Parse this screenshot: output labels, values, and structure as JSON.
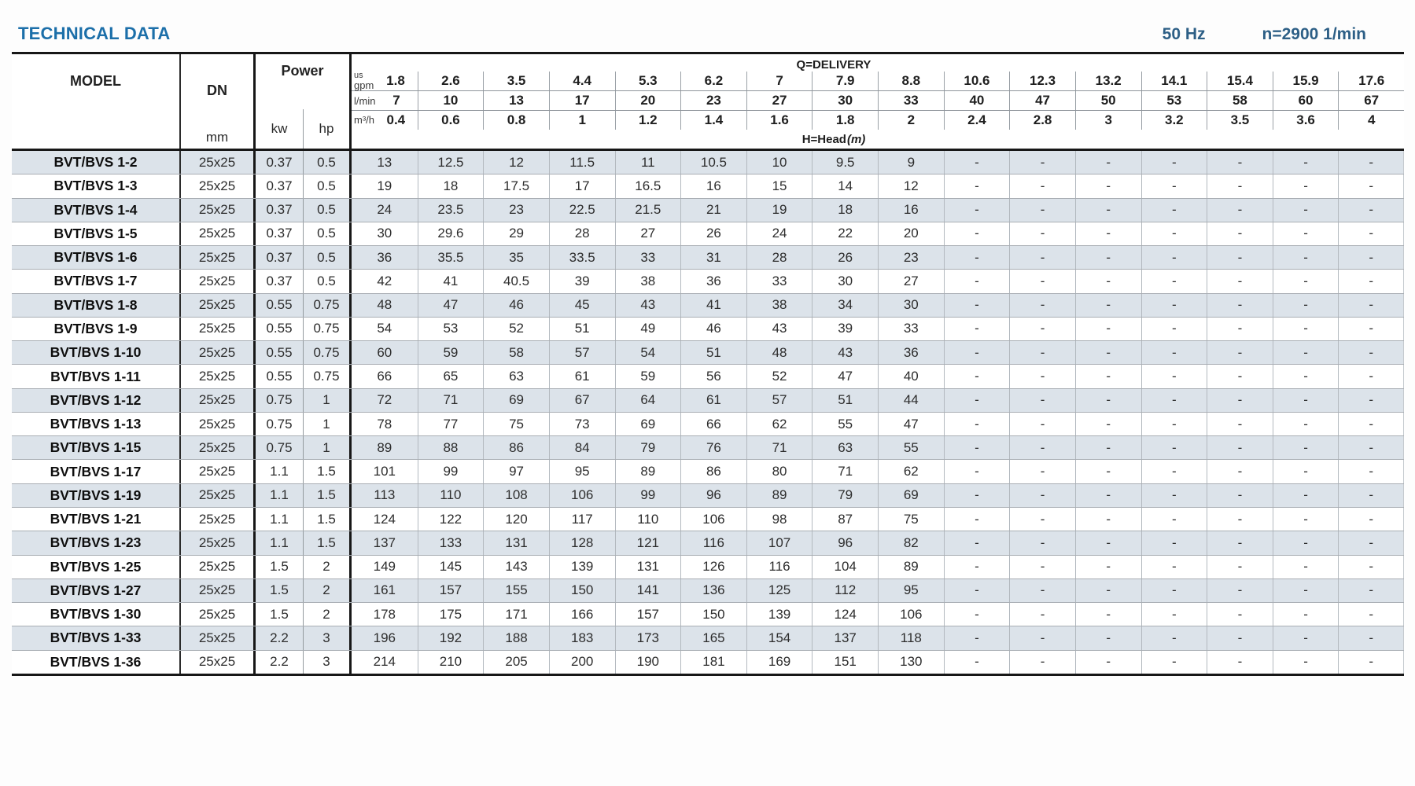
{
  "page": {
    "title": "TECHNICAL DATA",
    "frequency": "50 Hz",
    "speed": "n=2900 1/min"
  },
  "colors": {
    "title_blue": "#1c6fa9",
    "frequency_blue": "#2d5f86",
    "row_band": "#dce3ea",
    "heavy_border": "#171717"
  },
  "table": {
    "headers": {
      "model": "MODEL",
      "dn": "DN",
      "dn_unit": "mm",
      "power": "Power",
      "power_unit_kw": "kw",
      "power_unit_hp": "hp"
    },
    "delivery": {
      "title": "Q=DELIVERY",
      "head_label": "H=Head",
      "head_unit": "(m)",
      "unit_rows": [
        {
          "key": "usgpm",
          "label_small": "us",
          "label": "gpm",
          "values": [
            "1.8",
            "2.6",
            "3.5",
            "4.4",
            "5.3",
            "6.2",
            "7",
            "7.9",
            "8.8",
            "10.6",
            "12.3",
            "13.2",
            "14.1",
            "15.4",
            "15.9",
            "17.6"
          ]
        },
        {
          "key": "lmin",
          "label": "l/min",
          "values": [
            "7",
            "10",
            "13",
            "17",
            "20",
            "23",
            "27",
            "30",
            "33",
            "40",
            "47",
            "50",
            "53",
            "58",
            "60",
            "67"
          ]
        },
        {
          "key": "m3h",
          "label": "m³/h",
          "values": [
            "0.4",
            "0.6",
            "0.8",
            "1",
            "1.2",
            "1.4",
            "1.6",
            "1.8",
            "2",
            "2.4",
            "2.8",
            "3",
            "3.2",
            "3.5",
            "3.6",
            "4"
          ]
        }
      ]
    },
    "rows": [
      {
        "model": "BVT/BVS 1-2",
        "dn": "25x25",
        "kw": "0.37",
        "hp": "0.5",
        "head": [
          "13",
          "12.5",
          "12",
          "11.5",
          "11",
          "10.5",
          "10",
          "9.5",
          "9",
          "-",
          "-",
          "-",
          "-",
          "-",
          "-",
          "-"
        ]
      },
      {
        "model": "BVT/BVS 1-3",
        "dn": "25x25",
        "kw": "0.37",
        "hp": "0.5",
        "head": [
          "19",
          "18",
          "17.5",
          "17",
          "16.5",
          "16",
          "15",
          "14",
          "12",
          "-",
          "-",
          "-",
          "-",
          "-",
          "-",
          "-"
        ]
      },
      {
        "model": "BVT/BVS 1-4",
        "dn": "25x25",
        "kw": "0.37",
        "hp": "0.5",
        "head": [
          "24",
          "23.5",
          "23",
          "22.5",
          "21.5",
          "21",
          "19",
          "18",
          "16",
          "-",
          "-",
          "-",
          "-",
          "-",
          "-",
          "-"
        ]
      },
      {
        "model": "BVT/BVS 1-5",
        "dn": "25x25",
        "kw": "0.37",
        "hp": "0.5",
        "head": [
          "30",
          "29.6",
          "29",
          "28",
          "27",
          "26",
          "24",
          "22",
          "20",
          "-",
          "-",
          "-",
          "-",
          "-",
          "-",
          "-"
        ]
      },
      {
        "model": "BVT/BVS 1-6",
        "dn": "25x25",
        "kw": "0.37",
        "hp": "0.5",
        "head": [
          "36",
          "35.5",
          "35",
          "33.5",
          "33",
          "31",
          "28",
          "26",
          "23",
          "-",
          "-",
          "-",
          "-",
          "-",
          "-",
          "-"
        ]
      },
      {
        "model": "BVT/BVS 1-7",
        "dn": "25x25",
        "kw": "0.37",
        "hp": "0.5",
        "head": [
          "42",
          "41",
          "40.5",
          "39",
          "38",
          "36",
          "33",
          "30",
          "27",
          "-",
          "-",
          "-",
          "-",
          "-",
          "-",
          "-"
        ]
      },
      {
        "model": "BVT/BVS 1-8",
        "dn": "25x25",
        "kw": "0.55",
        "hp": "0.75",
        "head": [
          "48",
          "47",
          "46",
          "45",
          "43",
          "41",
          "38",
          "34",
          "30",
          "-",
          "-",
          "-",
          "-",
          "-",
          "-",
          "-"
        ]
      },
      {
        "model": "BVT/BVS 1-9",
        "dn": "25x25",
        "kw": "0.55",
        "hp": "0.75",
        "head": [
          "54",
          "53",
          "52",
          "51",
          "49",
          "46",
          "43",
          "39",
          "33",
          "-",
          "-",
          "-",
          "-",
          "-",
          "-",
          "-"
        ]
      },
      {
        "model": "BVT/BVS 1-10",
        "dn": "25x25",
        "kw": "0.55",
        "hp": "0.75",
        "head": [
          "60",
          "59",
          "58",
          "57",
          "54",
          "51",
          "48",
          "43",
          "36",
          "-",
          "-",
          "-",
          "-",
          "-",
          "-",
          "-"
        ]
      },
      {
        "model": "BVT/BVS 1-11",
        "dn": "25x25",
        "kw": "0.55",
        "hp": "0.75",
        "head": [
          "66",
          "65",
          "63",
          "61",
          "59",
          "56",
          "52",
          "47",
          "40",
          "-",
          "-",
          "-",
          "-",
          "-",
          "-",
          "-"
        ]
      },
      {
        "model": "BVT/BVS 1-12",
        "dn": "25x25",
        "kw": "0.75",
        "hp": "1",
        "head": [
          "72",
          "71",
          "69",
          "67",
          "64",
          "61",
          "57",
          "51",
          "44",
          "-",
          "-",
          "-",
          "-",
          "-",
          "-",
          "-"
        ]
      },
      {
        "model": "BVT/BVS 1-13",
        "dn": "25x25",
        "kw": "0.75",
        "hp": "1",
        "head": [
          "78",
          "77",
          "75",
          "73",
          "69",
          "66",
          "62",
          "55",
          "47",
          "-",
          "-",
          "-",
          "-",
          "-",
          "-",
          "-"
        ]
      },
      {
        "model": "BVT/BVS 1-15",
        "dn": "25x25",
        "kw": "0.75",
        "hp": "1",
        "head": [
          "89",
          "88",
          "86",
          "84",
          "79",
          "76",
          "71",
          "63",
          "55",
          "-",
          "-",
          "-",
          "-",
          "-",
          "-",
          "-"
        ]
      },
      {
        "model": "BVT/BVS 1-17",
        "dn": "25x25",
        "kw": "1.1",
        "hp": "1.5",
        "head": [
          "101",
          "99",
          "97",
          "95",
          "89",
          "86",
          "80",
          "71",
          "62",
          "-",
          "-",
          "-",
          "-",
          "-",
          "-",
          "-"
        ]
      },
      {
        "model": "BVT/BVS 1-19",
        "dn": "25x25",
        "kw": "1.1",
        "hp": "1.5",
        "head": [
          "113",
          "110",
          "108",
          "106",
          "99",
          "96",
          "89",
          "79",
          "69",
          "-",
          "-",
          "-",
          "-",
          "-",
          "-",
          "-"
        ]
      },
      {
        "model": "BVT/BVS 1-21",
        "dn": "25x25",
        "kw": "1.1",
        "hp": "1.5",
        "head": [
          "124",
          "122",
          "120",
          "117",
          "110",
          "106",
          "98",
          "87",
          "75",
          "-",
          "-",
          "-",
          "-",
          "-",
          "-",
          "-"
        ]
      },
      {
        "model": "BVT/BVS 1-23",
        "dn": "25x25",
        "kw": "1.1",
        "hp": "1.5",
        "head": [
          "137",
          "133",
          "131",
          "128",
          "121",
          "116",
          "107",
          "96",
          "82",
          "-",
          "-",
          "-",
          "-",
          "-",
          "-",
          "-"
        ]
      },
      {
        "model": "BVT/BVS 1-25",
        "dn": "25x25",
        "kw": "1.5",
        "hp": "2",
        "head": [
          "149",
          "145",
          "143",
          "139",
          "131",
          "126",
          "116",
          "104",
          "89",
          "-",
          "-",
          "-",
          "-",
          "-",
          "-",
          "-"
        ]
      },
      {
        "model": "BVT/BVS 1-27",
        "dn": "25x25",
        "kw": "1.5",
        "hp": "2",
        "head": [
          "161",
          "157",
          "155",
          "150",
          "141",
          "136",
          "125",
          "112",
          "95",
          "-",
          "-",
          "-",
          "-",
          "-",
          "-",
          "-"
        ]
      },
      {
        "model": "BVT/BVS 1-30",
        "dn": "25x25",
        "kw": "1.5",
        "hp": "2",
        "head": [
          "178",
          "175",
          "171",
          "166",
          "157",
          "150",
          "139",
          "124",
          "106",
          "-",
          "-",
          "-",
          "-",
          "-",
          "-",
          "-"
        ]
      },
      {
        "model": "BVT/BVS 1-33",
        "dn": "25x25",
        "kw": "2.2",
        "hp": "3",
        "head": [
          "196",
          "192",
          "188",
          "183",
          "173",
          "165",
          "154",
          "137",
          "118",
          "-",
          "-",
          "-",
          "-",
          "-",
          "-",
          "-"
        ]
      },
      {
        "model": "BVT/BVS 1-36",
        "dn": "25x25",
        "kw": "2.2",
        "hp": "3",
        "head": [
          "214",
          "210",
          "205",
          "200",
          "190",
          "181",
          "169",
          "151",
          "130",
          "-",
          "-",
          "-",
          "-",
          "-",
          "-",
          "-"
        ]
      }
    ]
  }
}
